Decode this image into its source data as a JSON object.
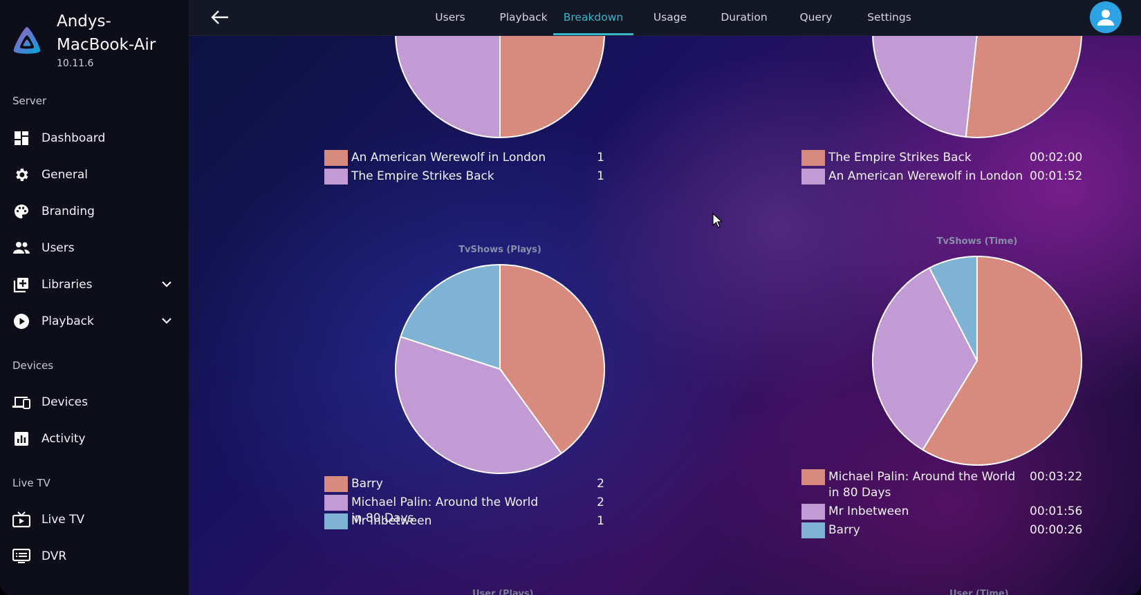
{
  "server": {
    "name": "Andys-MacBook-Air",
    "version": "10.11.6"
  },
  "sidebar": {
    "sections": {
      "server": "Server",
      "devices": "Devices",
      "livetv": "Live TV"
    },
    "items": [
      {
        "label": "Dashboard",
        "icon": "dashboard-icon"
      },
      {
        "label": "General",
        "icon": "gear-icon"
      },
      {
        "label": "Branding",
        "icon": "palette-icon"
      },
      {
        "label": "Users",
        "icon": "users-icon"
      },
      {
        "label": "Libraries",
        "icon": "library-add-icon"
      },
      {
        "label": "Playback",
        "icon": "play-circle-icon"
      },
      {
        "label": "Devices",
        "icon": "devices-icon"
      },
      {
        "label": "Activity",
        "icon": "activity-chart-icon"
      },
      {
        "label": "Live TV",
        "icon": "live-tv-icon"
      },
      {
        "label": "DVR",
        "icon": "dvr-icon"
      }
    ]
  },
  "tabs": [
    "Users",
    "Playback",
    "Breakdown",
    "Usage",
    "Duration",
    "Query",
    "Settings"
  ],
  "active_tab": "Breakdown",
  "colors": {
    "salmon": "#d98a7e",
    "lilac": "#c39bd4",
    "blue": "#7fb3d6",
    "accent": "#35b8c9"
  },
  "chart_data": [
    {
      "type": "pie",
      "title": "",
      "labels": [
        "An American Werewolf in London",
        "The Empire Strikes Back"
      ],
      "values": [
        1,
        1
      ],
      "display_values": [
        "1",
        "1"
      ]
    },
    {
      "type": "pie",
      "title": "",
      "labels": [
        "The Empire Strikes Back",
        "An American Werewolf in London"
      ],
      "values": [
        120,
        112
      ],
      "display_values": [
        "00:02:00",
        "00:01:52"
      ]
    },
    {
      "type": "pie",
      "title": "TvShows (Plays)",
      "labels": [
        "Barry",
        "Michael Palin: Around the World in 80 Days",
        "Mr Inbetween"
      ],
      "values": [
        2,
        2,
        1
      ],
      "display_values": [
        "2",
        "2",
        "1"
      ]
    },
    {
      "type": "pie",
      "title": "TvShows (Time)",
      "labels": [
        "Michael Palin: Around the World in 80 Days",
        "Mr Inbetween",
        "Barry"
      ],
      "values": [
        202,
        116,
        26
      ],
      "display_values": [
        "00:03:22",
        "00:01:56",
        "00:00:26"
      ]
    }
  ],
  "next_titles": [
    "User (Plays)",
    "User (Time)"
  ]
}
